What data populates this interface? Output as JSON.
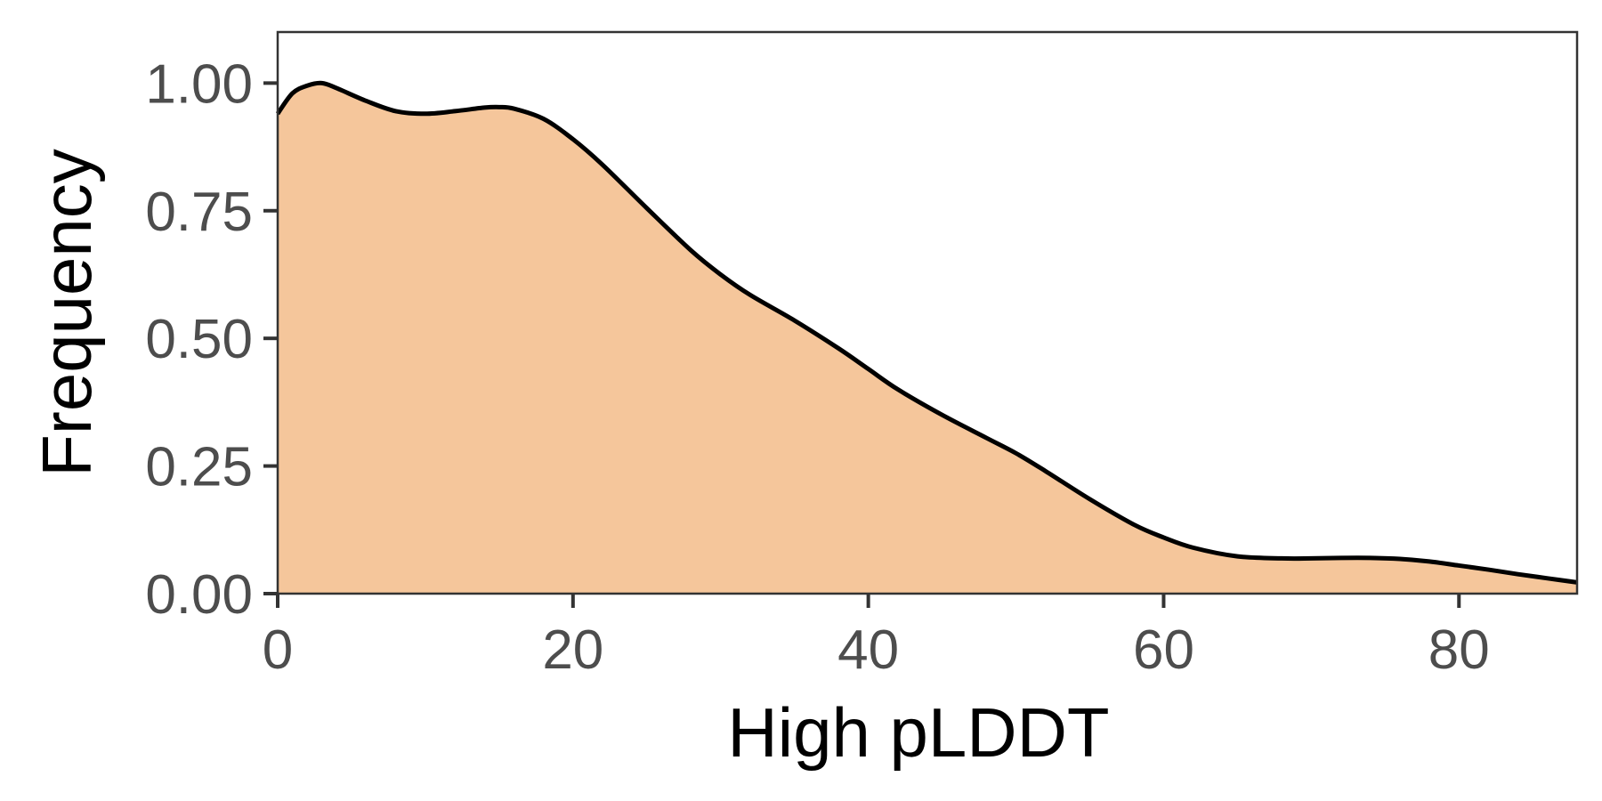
{
  "chart_data": {
    "type": "area",
    "title": "",
    "xlabel": "High pLDDT",
    "ylabel": "Frequency",
    "xlim": [
      0,
      88
    ],
    "ylim": [
      0,
      1.1
    ],
    "xticks": [
      0,
      20,
      40,
      60,
      80
    ],
    "xtick_labels": [
      "0",
      "20",
      "40",
      "60",
      "80"
    ],
    "yticks": [
      0,
      0.25,
      0.5,
      0.75,
      1.0
    ],
    "ytick_labels": [
      "0.00",
      "0.25",
      "0.50",
      "0.75",
      "1.00"
    ],
    "grid": false,
    "legend": "none",
    "series": [
      {
        "x": [
          0,
          1,
          2,
          3,
          4,
          6,
          8,
          10,
          12,
          14,
          15,
          16,
          18,
          20,
          22,
          25,
          28,
          30,
          32,
          35,
          38,
          40,
          42,
          45,
          48,
          50,
          52,
          55,
          58,
          60,
          62,
          65,
          68,
          70,
          72,
          74,
          76,
          78,
          80,
          82,
          84,
          86,
          88
        ],
        "y": [
          0.94,
          0.98,
          0.995,
          1.0,
          0.99,
          0.965,
          0.945,
          0.94,
          0.945,
          0.952,
          0.953,
          0.95,
          0.93,
          0.89,
          0.84,
          0.755,
          0.672,
          0.625,
          0.585,
          0.535,
          0.48,
          0.44,
          0.4,
          0.35,
          0.305,
          0.275,
          0.24,
          0.185,
          0.135,
          0.11,
          0.09,
          0.073,
          0.069,
          0.069,
          0.07,
          0.07,
          0.068,
          0.063,
          0.055,
          0.047,
          0.038,
          0.03,
          0.022
        ]
      }
    ],
    "colors": {
      "fill": "#f5c69b",
      "line": "#000000",
      "panel_border": "#333333",
      "tick_label": "#4d4d4d",
      "background": "#ffffff"
    }
  }
}
